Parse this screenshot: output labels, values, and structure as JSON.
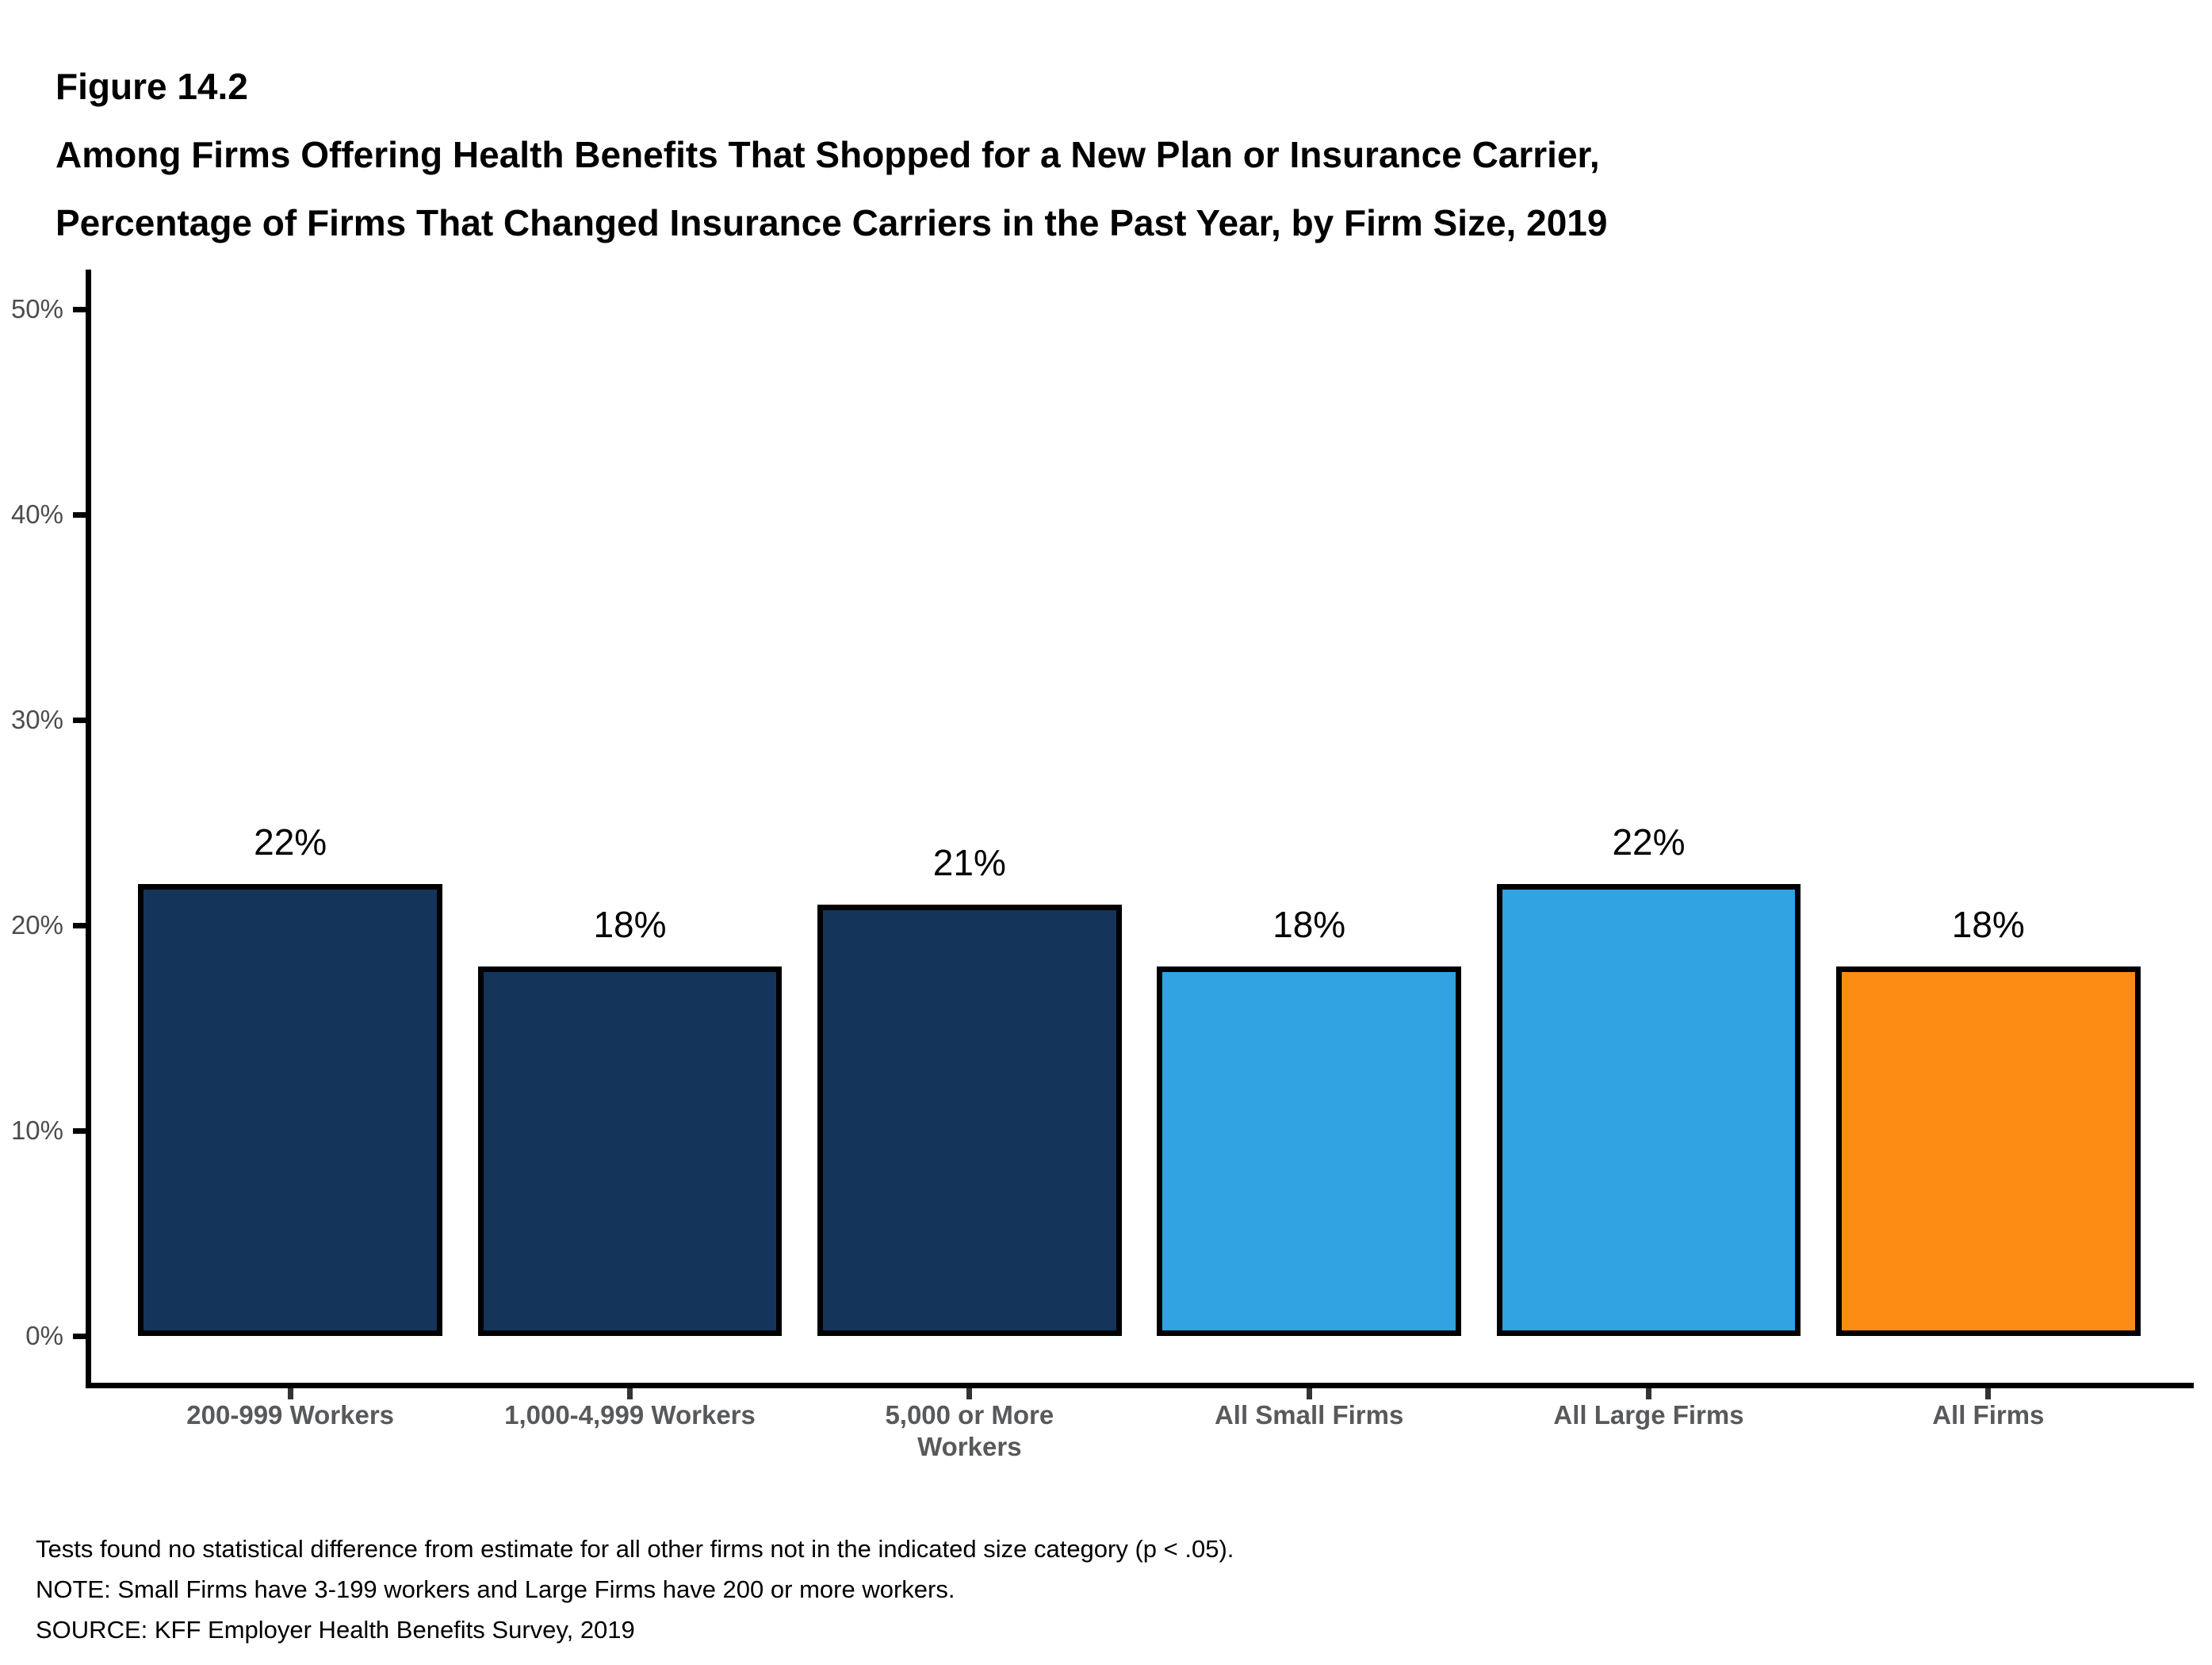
{
  "figure": {
    "label": "Figure 14.2",
    "title_line1": "Among Firms Offering Health Benefits That Shopped for a New Plan or Insurance Carrier,",
    "title_line2": "Percentage of Firms That Changed Insurance Carriers in the Past Year, by Firm Size, 2019"
  },
  "colors": {
    "dark_navy": "#14345a",
    "light_blue": "#31a2e2",
    "orange": "#fc8b13",
    "axis_black": "#000000",
    "ytick_label_gray": "#4d4d4d",
    "category_label_gray": "#58595b"
  },
  "chart_data": {
    "type": "bar",
    "title": "Among Firms Offering Health Benefits That Shopped for a New Plan or Insurance Carrier, Percentage of Firms That Changed Insurance Carriers in the Past Year, by Firm Size, 2019",
    "categories": [
      "200-999 Workers",
      "1,000-4,999 Workers",
      "5,000 or More\nWorkers",
      "All Small Firms",
      "All Large Firms",
      "All Firms"
    ],
    "values": [
      22,
      18,
      21,
      18,
      22,
      18
    ],
    "bar_labels": [
      "22%",
      "18%",
      "21%",
      "18%",
      "22%",
      "18%"
    ],
    "bar_colors": [
      "#14345a",
      "#14345a",
      "#14345a",
      "#31a2e2",
      "#31a2e2",
      "#fc8b13"
    ],
    "xlabel": "",
    "ylabel": "",
    "ylim": [
      0,
      50
    ],
    "ytick_values": [
      0,
      10,
      20,
      30,
      40,
      50
    ],
    "ytick_labels": [
      "0%",
      "10%",
      "20%",
      "30%",
      "40%",
      "50%"
    ],
    "grid": false,
    "legend": "none"
  },
  "notes": {
    "line1": "Tests found no statistical difference from estimate for all other firms not in the indicated size category (p < .05).",
    "line2": "NOTE: Small Firms have 3-199 workers and Large Firms have 200 or more workers.",
    "line3": "SOURCE: KFF Employer Health Benefits Survey, 2019"
  }
}
